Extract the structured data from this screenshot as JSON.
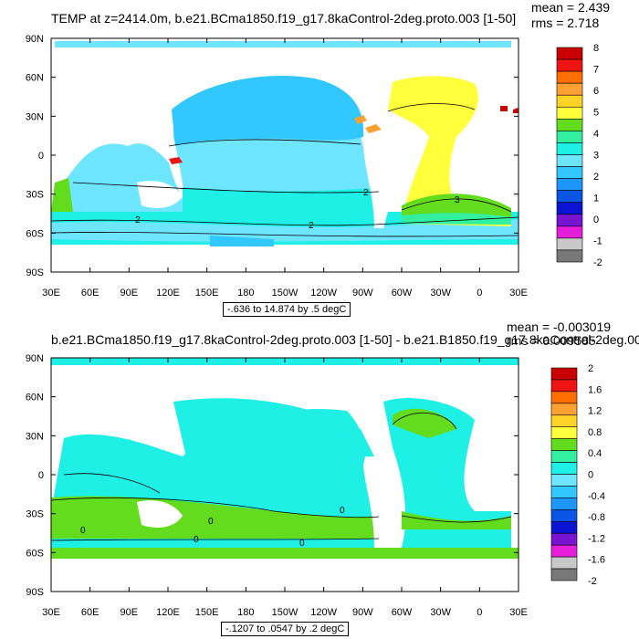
{
  "colors": {
    "land": "#ffffff",
    "frame": "#000000"
  },
  "panel_top": {
    "title": "TEMP at z=2414.0m, b.e21.BCma1850.f19_g17.8kaControl-2deg.proto.003 [1-50]",
    "mean_text": "mean = 2.439",
    "rms_text": "rms = 2.718",
    "range_text": "-.636 to 14.874 by .5 degC",
    "lat_labels": [
      "90N",
      "60N",
      "30N",
      "0",
      "30S",
      "60S",
      "90S"
    ],
    "lon_labels": [
      "30E",
      "60E",
      "90E",
      "120E",
      "150E",
      "180",
      "150W",
      "120W",
      "90W",
      "60W",
      "30W",
      "0",
      "30E"
    ],
    "colorbar": {
      "labels": [
        "8",
        "7",
        "6",
        "5",
        "4",
        "3",
        "2",
        "1",
        "0",
        "-1",
        "-2"
      ],
      "colors": [
        "#c80000",
        "#ee1414",
        "#ff6e00",
        "#ffa032",
        "#ffd228",
        "#ffff3c",
        "#64dc1e",
        "#32f0a0",
        "#1ef0e6",
        "#6ee6ff",
        "#32c8ff",
        "#1e96ff",
        "#0a55e6",
        "#0a14d2",
        "#7814d2",
        "#e61edc",
        "#c8c8c8",
        "#787878"
      ]
    },
    "contour_labels": [
      "2",
      "2",
      "2",
      "3"
    ]
  },
  "panel_bottom": {
    "title": "b.e21.BCma1850.f19_g17.8kaControl-2deg.proto.003 [1-50] - b.e21.B1850.f19_g17.8kaControl-2deg.00",
    "mean_text": "mean = -0.003019",
    "rms_text": "rms = 0.009585",
    "range_text": "-.1207 to .0547 by .2 degC",
    "lat_labels": [
      "90N",
      "60N",
      "30N",
      "0",
      "30S",
      "60S",
      "90S"
    ],
    "lon_labels": [
      "30E",
      "60E",
      "90E",
      "120E",
      "150E",
      "180",
      "150W",
      "120W",
      "90W",
      "60W",
      "30W",
      "0",
      "30E"
    ],
    "colorbar": {
      "labels": [
        "2",
        "1.6",
        "1.2",
        "0.8",
        "0.4",
        "0",
        "-0.4",
        "-0.8",
        "-1.2",
        "-1.6",
        "-2"
      ],
      "colors": [
        "#c80000",
        "#ee1414",
        "#ff6e00",
        "#ffa032",
        "#ffd228",
        "#ffff3c",
        "#64dc1e",
        "#32f0a0",
        "#1ef0e6",
        "#6ee6ff",
        "#32c8ff",
        "#1e96ff",
        "#0a55e6",
        "#0a14d2",
        "#7814d2",
        "#e61edc",
        "#c8c8c8",
        "#787878"
      ]
    },
    "contour_labels": [
      "0",
      "0",
      "0",
      "0",
      "0"
    ]
  }
}
